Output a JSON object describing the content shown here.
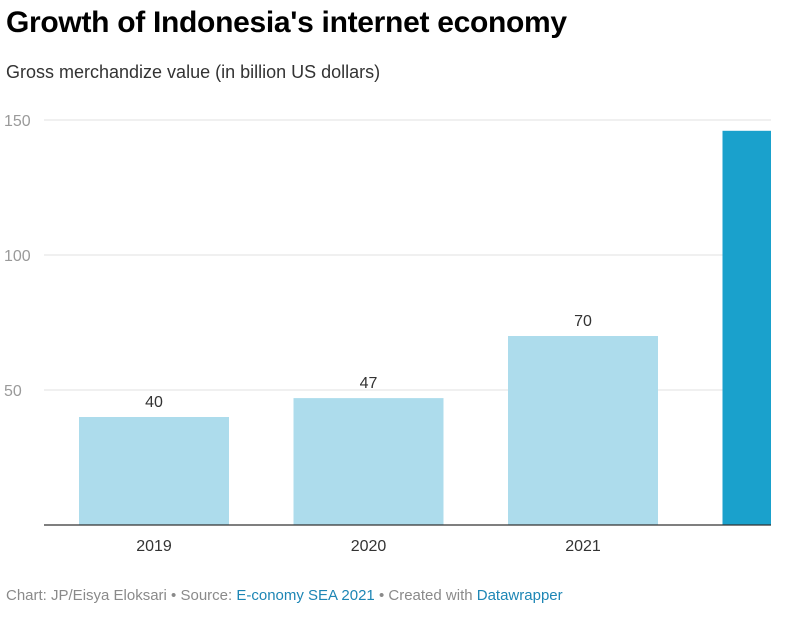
{
  "header": {
    "title": "Growth of Indonesia's internet economy",
    "subtitle": "Gross merchandize value (in billion US dollars)"
  },
  "footer": {
    "chart_credit": "Chart: JP/Eisya Eloksari",
    "separator": " • ",
    "source_prefix": "Source: ",
    "source_link": "E-conomy SEA 2021",
    "created_prefix": "Created with ",
    "created_link": "Datawrapper",
    "link_color": "#1d86b5"
  },
  "colors": {
    "light_bar": "#addcec",
    "dark_bar": "#1aa1cc",
    "gridline": "#e0e0e0",
    "axis": "#333333"
  },
  "chart_data": {
    "type": "bar",
    "title": "Growth of Indonesia's internet economy",
    "subtitle": "Gross merchandize value (in billion US dollars)",
    "categories": [
      "2019",
      "2020",
      "2021",
      ""
    ],
    "values": [
      40,
      47,
      70,
      146
    ],
    "value_labels": [
      "40",
      "47",
      "70",
      ""
    ],
    "highlight_index": 3,
    "ylim": [
      0,
      150
    ],
    "yticks": [
      50,
      100,
      150
    ],
    "grid": true,
    "legend": "none"
  }
}
